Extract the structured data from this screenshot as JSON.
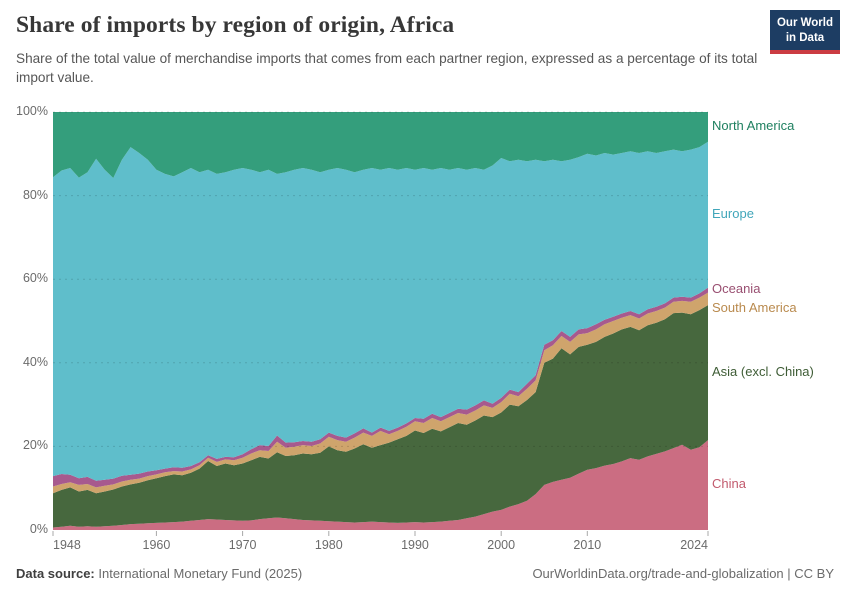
{
  "header": {
    "title": "Share of imports by region of origin, Africa",
    "subtitle": "Share of the total value of merchandise imports that comes from each partner region, expressed as a percentage of its total import value.",
    "logo": {
      "line1": "Our World",
      "line2": "in Data"
    }
  },
  "chart": {
    "y_ticks": [
      {
        "label": "0%",
        "value": 0
      },
      {
        "label": "20%",
        "value": 20
      },
      {
        "label": "40%",
        "value": 40
      },
      {
        "label": "60%",
        "value": 60
      },
      {
        "label": "80%",
        "value": 80
      },
      {
        "label": "100%",
        "value": 100
      }
    ],
    "x_ticks": [
      {
        "label": "1948",
        "year": 1948
      },
      {
        "label": "1960",
        "year": 1960
      },
      {
        "label": "1970",
        "year": 1970
      },
      {
        "label": "1980",
        "year": 1980
      },
      {
        "label": "1990",
        "year": 1990
      },
      {
        "label": "2000",
        "year": 2000
      },
      {
        "label": "2010",
        "year": 2010
      },
      {
        "label": "2024",
        "year": 2024
      }
    ],
    "legend": [
      {
        "label": "North America",
        "series": "North America",
        "color": "#1f8060"
      },
      {
        "label": "Europe",
        "series": "Europe",
        "color": "#41a6ba"
      },
      {
        "label": "Oceania",
        "series": "Oceania",
        "color": "#994f71"
      },
      {
        "label": "South America",
        "series": "South America",
        "color": "#b98a4e"
      },
      {
        "label": "Asia (excl. China)",
        "series": "Asia (excl. China)",
        "color": "#3e5c35"
      },
      {
        "label": "China",
        "series": "China",
        "color": "#c25b6e"
      }
    ]
  },
  "chart_data": {
    "type": "area",
    "stacked": true,
    "unit": "%",
    "title": "Share of imports by region of origin, Africa",
    "xlabel": "",
    "ylabel": "",
    "ylim": [
      0,
      100
    ],
    "xlim": [
      1948,
      2024
    ],
    "grid": "dashed-horizontal",
    "legend_position": "right",
    "x": [
      1948,
      1949,
      1950,
      1951,
      1952,
      1953,
      1954,
      1955,
      1956,
      1957,
      1958,
      1959,
      1960,
      1961,
      1962,
      1963,
      1964,
      1965,
      1966,
      1967,
      1968,
      1969,
      1970,
      1971,
      1972,
      1973,
      1974,
      1975,
      1976,
      1977,
      1978,
      1979,
      1980,
      1981,
      1982,
      1983,
      1984,
      1985,
      1986,
      1987,
      1988,
      1989,
      1990,
      1991,
      1992,
      1993,
      1994,
      1995,
      1996,
      1997,
      1998,
      1999,
      2000,
      2001,
      2002,
      2003,
      2004,
      2005,
      2006,
      2007,
      2008,
      2009,
      2010,
      2011,
      2012,
      2013,
      2014,
      2015,
      2016,
      2017,
      2018,
      2019,
      2020,
      2021,
      2022,
      2023,
      2024
    ],
    "series_order": "bottom-to-top",
    "series": [
      {
        "name": "China",
        "color": "#cb6d82",
        "values": [
          0.6,
          0.8,
          1.0,
          0.8,
          0.9,
          0.8,
          0.9,
          1.0,
          1.2,
          1.4,
          1.5,
          1.6,
          1.7,
          1.8,
          1.9,
          2.0,
          2.2,
          2.4,
          2.6,
          2.5,
          2.4,
          2.3,
          2.2,
          2.3,
          2.6,
          2.8,
          3.0,
          2.8,
          2.6,
          2.4,
          2.3,
          2.2,
          2.1,
          2.0,
          1.9,
          1.8,
          1.9,
          2.0,
          1.9,
          1.8,
          1.7,
          1.8,
          1.9,
          1.8,
          1.9,
          2.0,
          2.2,
          2.4,
          2.8,
          3.2,
          3.8,
          4.4,
          4.8,
          5.6,
          6.2,
          7.0,
          8.6,
          10.8,
          11.5,
          12.0,
          12.5,
          13.5,
          14.4,
          14.8,
          15.4,
          15.8,
          16.4,
          17.2,
          16.8,
          17.6,
          18.2,
          18.8,
          19.6,
          20.4,
          19.2,
          19.8,
          21.5
        ]
      },
      {
        "name": "Asia (excl. China)",
        "color": "#47683e",
        "values": [
          8.2,
          8.8,
          9.2,
          8.4,
          8.7,
          8.0,
          8.3,
          8.7,
          9.2,
          9.5,
          9.8,
          10.3,
          10.7,
          11.1,
          11.4,
          11.1,
          11.5,
          12.3,
          13.9,
          12.8,
          13.5,
          13.2,
          13.7,
          14.4,
          14.9,
          14.3,
          15.6,
          14.9,
          15.3,
          15.9,
          15.8,
          16.3,
          17.9,
          17.1,
          16.8,
          17.7,
          18.6,
          17.7,
          18.4,
          19.1,
          20.0,
          20.7,
          21.9,
          21.4,
          22.3,
          21.6,
          22.4,
          23.2,
          22.4,
          23.0,
          23.6,
          22.6,
          23.3,
          24.4,
          23.4,
          24.1,
          24.4,
          29.2,
          29.5,
          31.5,
          29.5,
          30.3,
          29.9,
          30.2,
          30.8,
          31.2,
          31.6,
          31.4,
          31.0,
          31.4,
          31.4,
          31.6,
          32.3,
          31.6,
          32.4,
          32.8,
          32.3
        ]
      },
      {
        "name": "South America",
        "color": "#cfa46c",
        "values": [
          1.6,
          1.4,
          1.2,
          1.6,
          1.4,
          1.4,
          1.4,
          1.2,
          1.2,
          1.1,
          1.0,
          1.0,
          0.9,
          0.9,
          0.8,
          0.9,
          0.8,
          0.8,
          0.8,
          1.0,
          1.0,
          1.2,
          1.4,
          1.6,
          1.6,
          1.8,
          2.5,
          2.0,
          2.0,
          2.0,
          2.0,
          2.2,
          2.3,
          2.4,
          2.4,
          2.6,
          2.8,
          2.8,
          3.4,
          2.0,
          2.0,
          2.2,
          2.2,
          2.4,
          2.6,
          2.4,
          2.4,
          2.4,
          2.4,
          2.4,
          2.4,
          2.2,
          2.5,
          2.6,
          2.4,
          2.7,
          2.8,
          3.0,
          3.2,
          2.9,
          3.0,
          3.0,
          2.8,
          3.0,
          3.0,
          3.0,
          2.8,
          2.8,
          2.8,
          2.8,
          2.8,
          2.8,
          2.7,
          2.8,
          3.0,
          3.0,
          3.0
        ]
      },
      {
        "name": "Oceania",
        "color": "#a75a8e",
        "values": [
          2.5,
          2.4,
          1.8,
          1.6,
          1.7,
          1.6,
          1.4,
          1.4,
          1.4,
          1.2,
          1.2,
          1.1,
          1.0,
          0.9,
          0.9,
          0.9,
          0.8,
          0.7,
          0.6,
          0.7,
          0.6,
          0.7,
          0.8,
          1.0,
          1.2,
          1.2,
          1.5,
          1.2,
          1.1,
          1.0,
          1.0,
          1.0,
          1.0,
          1.0,
          1.0,
          1.0,
          1.0,
          0.8,
          0.8,
          0.8,
          0.8,
          0.8,
          0.8,
          1.0,
          1.0,
          1.0,
          1.0,
          1.0,
          1.2,
          1.2,
          1.2,
          1.0,
          1.0,
          1.0,
          1.0,
          1.2,
          1.2,
          1.3,
          1.2,
          1.2,
          1.2,
          1.2,
          1.2,
          1.2,
          1.1,
          1.0,
          1.0,
          1.0,
          1.0,
          1.0,
          1.0,
          1.0,
          1.0,
          1.0,
          1.0,
          1.0,
          1.2
        ]
      },
      {
        "name": "Europe",
        "color": "#5fbecb",
        "values": [
          71.5,
          72.6,
          73.4,
          71.9,
          72.9,
          77.0,
          74.2,
          71.9,
          75.6,
          78.4,
          76.7,
          74.6,
          71.9,
          70.5,
          69.6,
          70.7,
          71.3,
          69.4,
          68.3,
          68.2,
          68.1,
          68.8,
          68.5,
          66.9,
          65.3,
          66.1,
          62.6,
          64.7,
          65.2,
          65.3,
          65.1,
          63.9,
          62.9,
          64.1,
          64.1,
          62.5,
          61.9,
          63.3,
          61.7,
          62.9,
          61.7,
          61.1,
          59.4,
          60.0,
          58.4,
          59.6,
          58.2,
          57.6,
          57.4,
          56.8,
          55.2,
          57.0,
          57.4,
          54.6,
          55.6,
          53.2,
          51.6,
          43.9,
          43.2,
          40.6,
          42.4,
          41.2,
          41.7,
          40.4,
          39.9,
          38.8,
          38.4,
          38.2,
          38.6,
          37.8,
          36.8,
          36.4,
          35.4,
          34.8,
          35.4,
          35.0,
          34.9
        ]
      },
      {
        "name": "North America",
        "color": "#349e7c",
        "values": [
          15.6,
          14.0,
          13.4,
          15.7,
          14.4,
          11.2,
          13.8,
          15.8,
          11.4,
          8.4,
          9.8,
          11.4,
          13.8,
          14.8,
          15.4,
          14.4,
          13.4,
          14.4,
          13.8,
          14.8,
          14.4,
          13.8,
          13.4,
          13.8,
          14.4,
          13.8,
          14.8,
          14.4,
          13.8,
          13.4,
          13.8,
          14.4,
          13.8,
          13.4,
          13.8,
          14.4,
          13.8,
          13.4,
          13.8,
          13.4,
          13.8,
          13.4,
          13.8,
          13.4,
          13.8,
          13.4,
          13.8,
          13.4,
          13.8,
          13.4,
          13.8,
          12.8,
          11.0,
          11.8,
          11.4,
          11.8,
          11.4,
          11.8,
          11.4,
          11.8,
          11.4,
          10.8,
          10.0,
          10.4,
          9.8,
          10.2,
          9.8,
          9.4,
          9.8,
          9.4,
          9.8,
          9.4,
          9.0,
          9.4,
          9.0,
          8.4,
          7.1
        ]
      }
    ]
  },
  "footer": {
    "source_label": "Data source:",
    "source_value": "International Monetary Fund (2025)",
    "credit": "OurWorldinData.org/trade-and-globalization | CC BY"
  },
  "colors": {
    "logo_bg": "#1d3d63",
    "logo_accent": "#cb3c42",
    "grid": "rgba(0,0,0,0.14)",
    "axis_text": "#6b6b6b"
  }
}
